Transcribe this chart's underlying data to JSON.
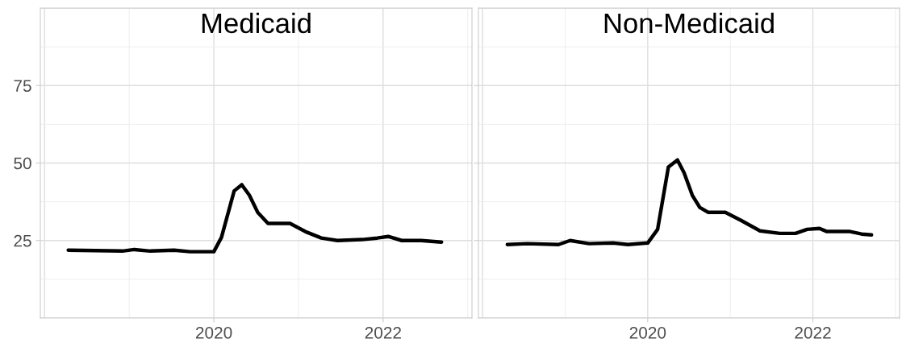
{
  "chart_data": [
    {
      "type": "line",
      "title": "Medicaid",
      "xlim": [
        2017.95,
        2023.05
      ],
      "xticks": [
        2020,
        2022
      ],
      "ylim": [
        0,
        100
      ],
      "yticks": [
        25,
        50,
        75
      ],
      "grid": true,
      "line_style": "solid",
      "marker": "none",
      "series": [
        {
          "color": "#000000",
          "x": [
            2018.28,
            2018.92,
            2019.06,
            2019.25,
            2019.53,
            2019.72,
            2020.0,
            2020.09,
            2020.24,
            2020.33,
            2020.42,
            2020.52,
            2020.64,
            2020.9,
            2021.08,
            2021.27,
            2021.46,
            2021.75,
            2021.93,
            2022.06,
            2022.22,
            2022.45,
            2022.69
          ],
          "values": [
            21.9,
            21.6,
            22.1,
            21.6,
            21.9,
            21.4,
            21.4,
            26,
            41,
            43,
            39.6,
            34,
            30.5,
            30.5,
            27.9,
            25.8,
            25,
            25.3,
            25.8,
            26.3,
            25,
            25,
            24.5
          ]
        }
      ]
    },
    {
      "type": "line",
      "title": "Non-Medicaid",
      "xlim": [
        2017.95,
        2023.05
      ],
      "xticks": [
        2020,
        2022
      ],
      "ylim": [
        0,
        100
      ],
      "yticks": [
        25,
        50,
        75
      ],
      "grid": true,
      "line_style": "solid",
      "marker": "none",
      "tick_labels": "x",
      "series": [
        {
          "color": "#000000",
          "x": [
            2018.3,
            2018.54,
            2018.92,
            2019.06,
            2019.29,
            2019.58,
            2019.76,
            2020.0,
            2020.12,
            2020.25,
            2020.36,
            2020.44,
            2020.54,
            2020.63,
            2020.73,
            2020.94,
            2021.13,
            2021.36,
            2021.6,
            2021.79,
            2021.93,
            2022.08,
            2022.17,
            2022.45,
            2022.59,
            2022.71
          ],
          "values": [
            23.7,
            24,
            23.7,
            25,
            24,
            24.2,
            23.7,
            24.2,
            28.6,
            48.7,
            51,
            46.9,
            39.6,
            35.7,
            34.1,
            34.1,
            31.5,
            28.1,
            27.3,
            27.3,
            28.6,
            28.9,
            27.9,
            27.9,
            27.1,
            26.8
          ]
        }
      ]
    }
  ]
}
